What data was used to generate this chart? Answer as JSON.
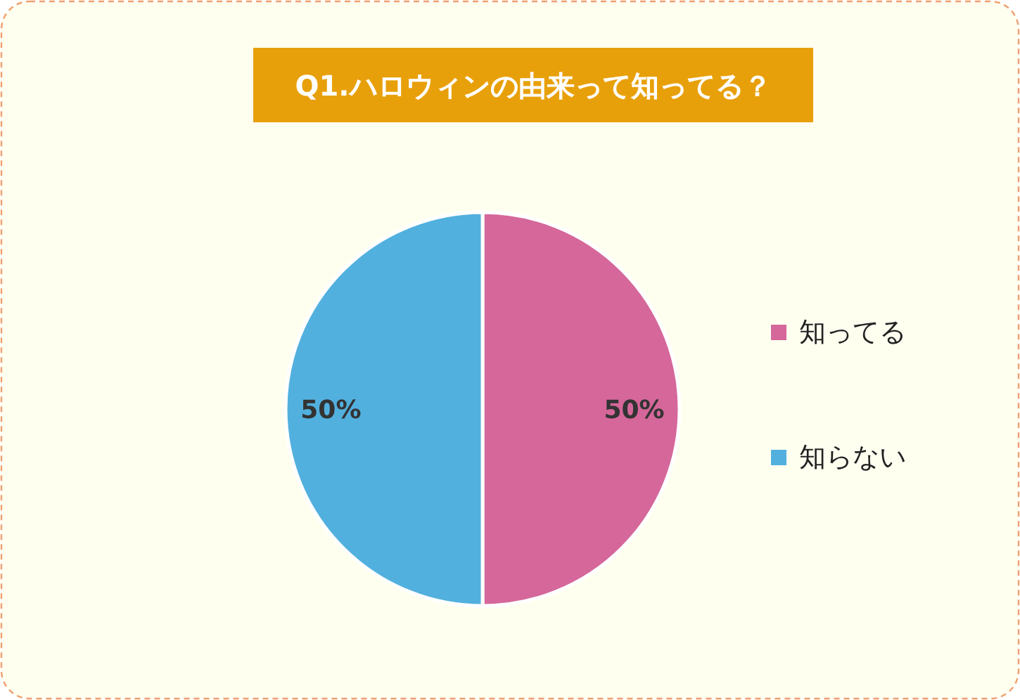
{
  "chart_data": {
    "type": "pie",
    "title": "Q1.ハロウィンの由来って知ってる？",
    "categories": [
      "知ってる",
      "知らない"
    ],
    "values": [
      50,
      50
    ],
    "colors": [
      "#d5679a",
      "#52b0de"
    ],
    "value_labels": [
      "50%",
      "50%"
    ],
    "legend": "right"
  }
}
